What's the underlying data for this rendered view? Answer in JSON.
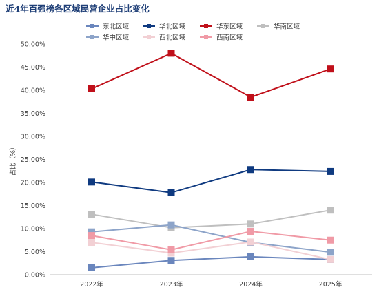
{
  "chart_data": {
    "type": "line",
    "title": "近4年百强榜各区域民营企业占比变化",
    "ylabel": "占比（%）",
    "categories": [
      "2022年",
      "2023年",
      "2024年",
      "2025年"
    ],
    "ylim": [
      0,
      50
    ],
    "yticks": [
      "0.00%",
      "5.00%",
      "10.00%",
      "15.00%",
      "20.00%",
      "25.00%",
      "30.00%",
      "35.00%",
      "40.00%",
      "45.00%",
      "50.00%"
    ],
    "legend_position": "top",
    "series": [
      {
        "name": "东北区域",
        "color": "#6a86bd",
        "values": [
          1.5,
          3.1,
          3.9,
          3.3
        ]
      },
      {
        "name": "华北区域",
        "color": "#0f3a80",
        "values": [
          20.1,
          17.8,
          22.8,
          22.4
        ]
      },
      {
        "name": "华东区域",
        "color": "#c0101a",
        "values": [
          40.3,
          48.0,
          38.5,
          44.6
        ]
      },
      {
        "name": "华南区域",
        "color": "#bfbfbf",
        "values": [
          13.1,
          10.2,
          11.0,
          14.0
        ]
      },
      {
        "name": "华中区域",
        "color": "#8da4c9",
        "values": [
          9.3,
          10.8,
          7.0,
          4.9
        ]
      },
      {
        "name": "西北区域",
        "color": "#f2d0d4",
        "values": [
          7.0,
          4.7,
          7.1,
          3.3
        ]
      },
      {
        "name": "西南区域",
        "color": "#f09aa6",
        "values": [
          8.5,
          5.4,
          9.4,
          7.5
        ]
      }
    ]
  }
}
